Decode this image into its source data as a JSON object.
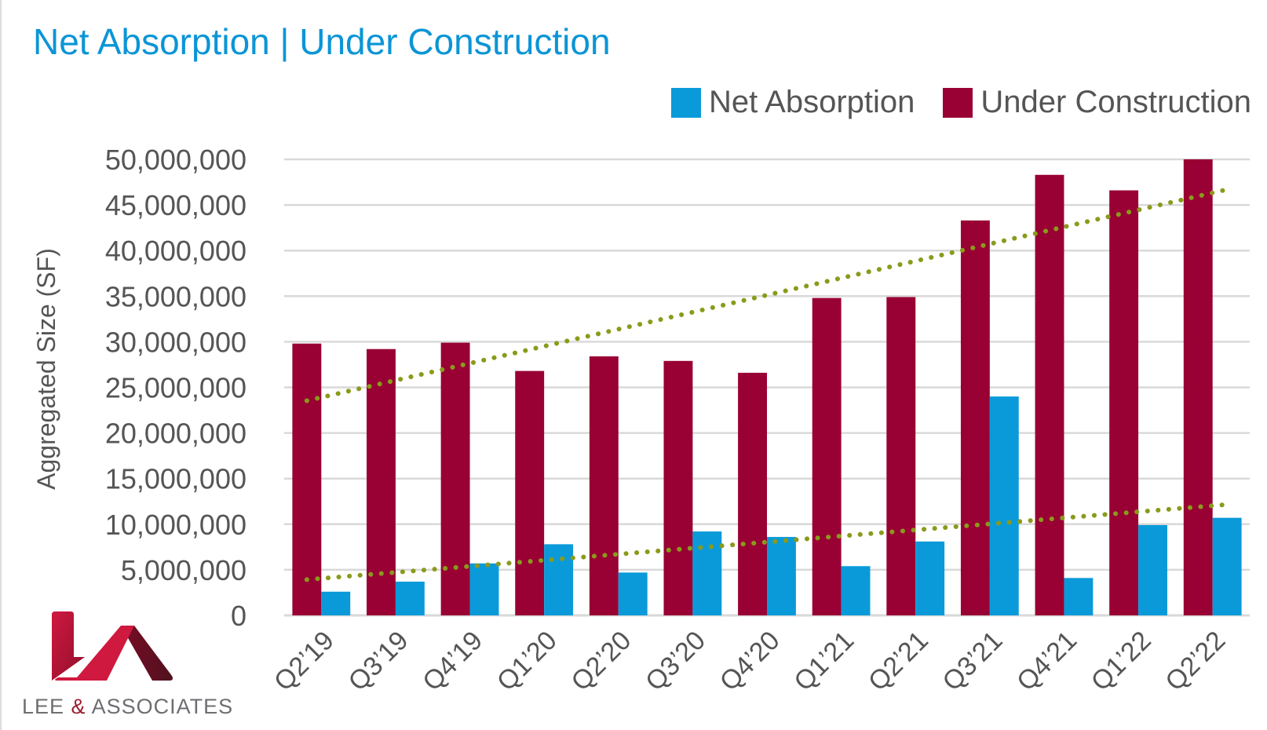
{
  "chart_data": {
    "type": "bar",
    "title": "Net Absorption | Under Construction",
    "xlabel": "",
    "ylabel": "Aggregated Size (SF)",
    "ylim": [
      0,
      50000000
    ],
    "yticks": [
      "0",
      "5,000,000",
      "10,000,000",
      "15,000,000",
      "20,000,000",
      "25,000,000",
      "30,000,000",
      "35,000,000",
      "40,000,000",
      "45,000,000",
      "50,000,000"
    ],
    "grid": true,
    "legend_position": "top-right",
    "categories": [
      "Q2’19",
      "Q3’19",
      "Q4’19",
      "Q1’20",
      "Q2’20",
      "Q3’20",
      "Q4’20",
      "Q1’21",
      "Q2’21",
      "Q3’21",
      "Q4’21",
      "Q1’22",
      "Q2’22"
    ],
    "series": [
      {
        "name": "Under Construction",
        "color": "#990033",
        "values": [
          29800000,
          29200000,
          29900000,
          26800000,
          28400000,
          27900000,
          26600000,
          34800000,
          34900000,
          43300000,
          48300000,
          46600000,
          50000000
        ],
        "trendline": "linear"
      },
      {
        "name": "Net Absorption",
        "color": "#0a9ad9",
        "values": [
          2600000,
          3700000,
          5700000,
          7800000,
          4700000,
          9200000,
          8600000,
          5400000,
          8100000,
          24000000,
          4100000,
          9900000,
          10700000
        ],
        "trendline": "linear"
      }
    ],
    "trendline_color": "#8a9a1b"
  },
  "logo": {
    "text_left": "LEE ",
    "text_amp": "&",
    "text_right": " ASSOCIATES"
  }
}
